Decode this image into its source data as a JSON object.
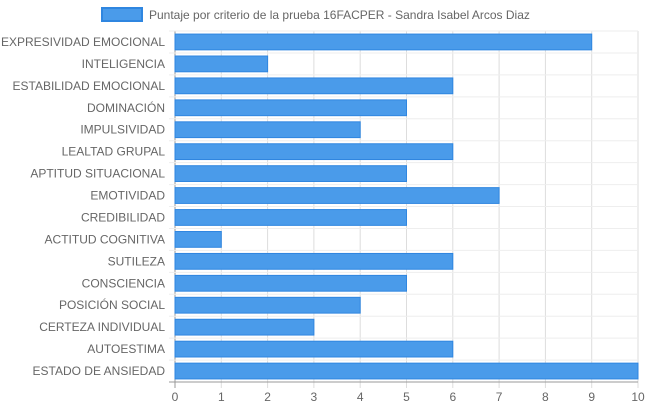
{
  "chart_data": {
    "type": "bar",
    "orientation": "horizontal",
    "legend": {
      "position": "top",
      "label": "Puntaje por criterio de la prueba 16FACPER - Sandra Isabel Arcos Diaz"
    },
    "categories": [
      "EXPRESIVIDAD EMOCIONAL",
      "INTELIGENCIA",
      "ESTABILIDAD EMOCIONAL",
      "DOMINACIÓN",
      "IMPULSIVIDAD",
      "LEALTAD GRUPAL",
      "APTITUD SITUACIONAL",
      "EMOTIVIDAD",
      "CREDIBILIDAD",
      "ACTITUD COGNITIVA",
      "SUTILEZA",
      "CONSCIENCIA",
      "POSICIÓN SOCIAL",
      "CERTEZA INDIVIDUAL",
      "AUTOESTIMA",
      "ESTADO DE ANSIEDAD"
    ],
    "series": [
      {
        "name": "Puntaje por criterio de la prueba 16FACPER - Sandra Isabel Arcos Diaz",
        "values": [
          9,
          2,
          6,
          5,
          4,
          6,
          5,
          7,
          5,
          1,
          6,
          5,
          4,
          3,
          6,
          10
        ]
      }
    ],
    "xlim": [
      0,
      10
    ],
    "x_ticks": [
      "0",
      "1",
      "2",
      "3",
      "4",
      "5",
      "6",
      "7",
      "8",
      "9",
      "10"
    ],
    "grid": true,
    "colors": {
      "bar_fill": "#4a9bea",
      "bar_stroke": "#2f86e0",
      "grid": "#e5e5e5",
      "text": "#666666"
    }
  }
}
